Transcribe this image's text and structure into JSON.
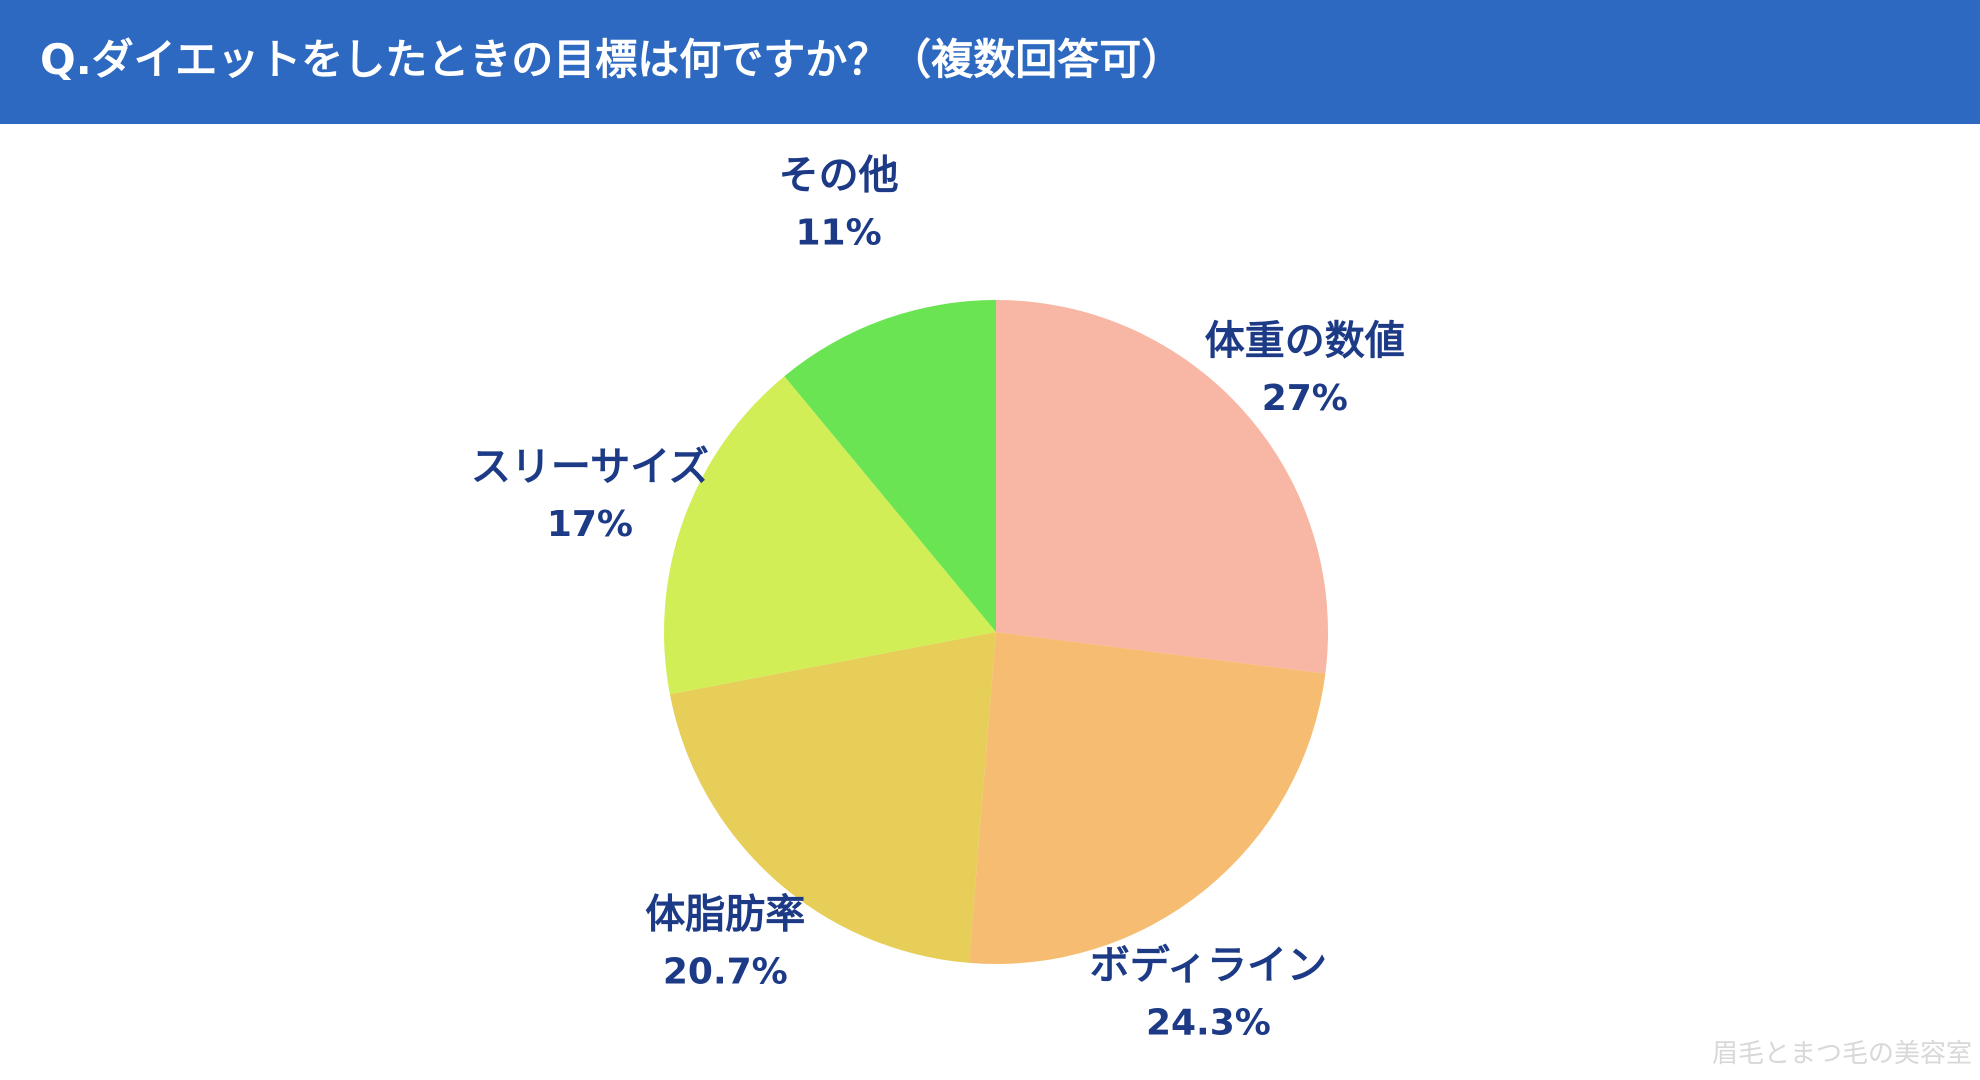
{
  "header": {
    "title": "Q.ダイエットをしたときの目標は何ですか？（複数回答可）",
    "background_color": "#2d69c0"
  },
  "chart_data": {
    "type": "pie",
    "title": "Q.ダイエットをしたときの目標は何ですか？（複数回答可）",
    "slices": [
      {
        "label": "体重の数値",
        "value": 27,
        "value_label": "27%",
        "color": "#f8b6a4"
      },
      {
        "label": "ボディライン",
        "value": 24.3,
        "value_label": "24.3%",
        "color": "#f6bc72"
      },
      {
        "label": "体脂肪率",
        "value": 20.7,
        "value_label": "20.7%",
        "color": "#e6ce58"
      },
      {
        "label": "スリーサイズ",
        "value": 17,
        "value_label": "17%",
        "color": "#d2ee56"
      },
      {
        "label": "その他",
        "value": 11,
        "value_label": "11%",
        "color": "#6ae452"
      }
    ],
    "start_angle": "12 o'clock",
    "direction": "clockwise",
    "label_text_color": "#1c3a86"
  },
  "watermark": "眉毛とまつ毛の美容室"
}
